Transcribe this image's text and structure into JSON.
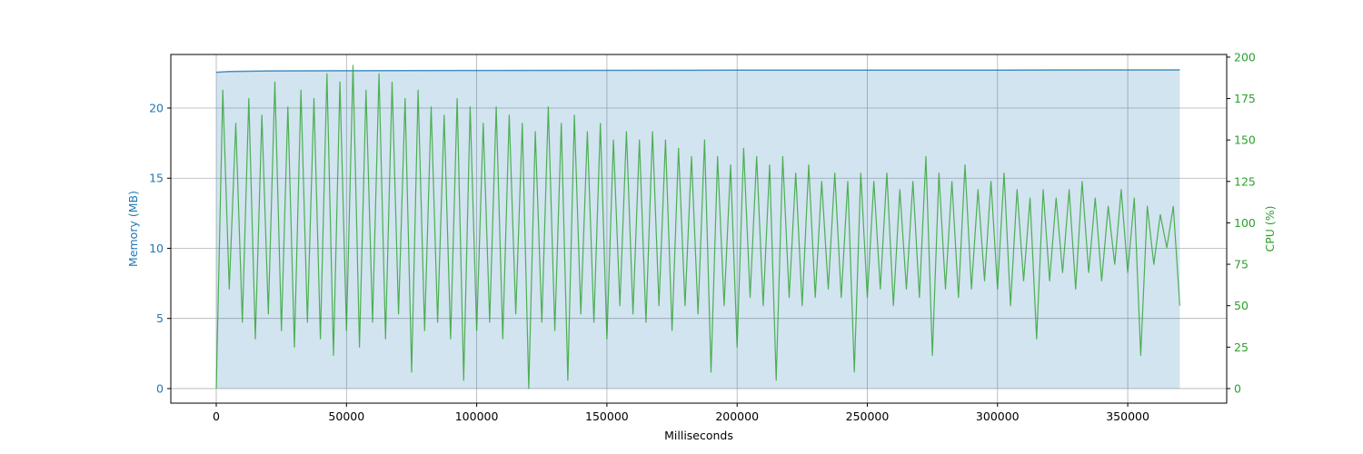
{
  "chart_data": {
    "type": "line",
    "x_label": "Milliseconds",
    "y_label": "Memory (MB)",
    "y2_label": "CPU (%)",
    "xlim": [
      -17450,
      388000
    ],
    "ylim": [
      -1.04,
      23.82
    ],
    "y2lim": [
      -8.8,
      201.6
    ],
    "xticks": [
      0,
      50000,
      100000,
      150000,
      200000,
      250000,
      300000,
      350000
    ],
    "yticks": [
      0,
      5,
      10,
      15,
      20
    ],
    "y2ticks": [
      0,
      25,
      50,
      75,
      100,
      125,
      150,
      175,
      200
    ],
    "grid": true,
    "series": [
      {
        "name": "Memory",
        "color": "#1f77b4",
        "fill": true,
        "x": [
          0,
          5000,
          20000,
          100000,
          200000,
          300000,
          340000,
          370000
        ],
        "values": [
          22.55,
          22.6,
          22.65,
          22.68,
          22.7,
          22.7,
          22.72,
          22.72
        ]
      },
      {
        "name": "CPU",
        "color": "#2ca02c",
        "axis": "y2",
        "x": [
          0,
          2500,
          5000,
          7500,
          10000,
          12500,
          15000,
          17500,
          20000,
          22500,
          25000,
          27500,
          30000,
          32500,
          35000,
          37500,
          40000,
          42500,
          45000,
          47500,
          50000,
          52500,
          55000,
          57500,
          60000,
          62500,
          65000,
          67500,
          70000,
          72500,
          75000,
          77500,
          80000,
          82500,
          85000,
          87500,
          90000,
          92500,
          95000,
          97500,
          100000,
          102500,
          105000,
          107500,
          110000,
          112500,
          115000,
          117500,
          120000,
          122500,
          125000,
          127500,
          130000,
          132500,
          135000,
          137500,
          140000,
          142500,
          145000,
          147500,
          150000,
          152500,
          155000,
          157500,
          160000,
          162500,
          165000,
          167500,
          170000,
          172500,
          175000,
          177500,
          180000,
          182500,
          185000,
          187500,
          190000,
          192500,
          195000,
          197500,
          200000,
          202500,
          205000,
          207500,
          210000,
          212500,
          215000,
          217500,
          220000,
          222500,
          225000,
          227500,
          230000,
          232500,
          235000,
          237500,
          240000,
          242500,
          245000,
          247500,
          250000,
          252500,
          255000,
          257500,
          260000,
          262500,
          265000,
          267500,
          270000,
          272500,
          275000,
          277500,
          280000,
          282500,
          285000,
          287500,
          290000,
          292500,
          295000,
          297500,
          300000,
          302500,
          305000,
          307500,
          310000,
          312500,
          315000,
          317500,
          320000,
          322500,
          325000,
          327500,
          330000,
          332500,
          335000,
          337500,
          340000,
          342500,
          345000,
          347500,
          350000,
          352500,
          355000,
          357500,
          360000,
          362500,
          365000,
          367500,
          370000
        ],
        "values": [
          0,
          180,
          60,
          160,
          40,
          175,
          30,
          165,
          45,
          185,
          35,
          170,
          25,
          180,
          40,
          175,
          30,
          190,
          20,
          185,
          35,
          195,
          25,
          180,
          40,
          190,
          30,
          185,
          45,
          175,
          10,
          180,
          35,
          170,
          40,
          165,
          30,
          175,
          5,
          170,
          35,
          160,
          40,
          170,
          30,
          165,
          45,
          160,
          0,
          155,
          40,
          170,
          35,
          160,
          5,
          165,
          45,
          155,
          40,
          160,
          30,
          150,
          50,
          155,
          45,
          150,
          40,
          155,
          50,
          150,
          35,
          145,
          50,
          140,
          45,
          150,
          10,
          140,
          50,
          135,
          25,
          145,
          55,
          140,
          50,
          135,
          5,
          140,
          55,
          130,
          50,
          135,
          55,
          125,
          60,
          130,
          55,
          125,
          10,
          130,
          55,
          125,
          60,
          130,
          50,
          120,
          60,
          125,
          55,
          140,
          20,
          130,
          60,
          125,
          55,
          135,
          60,
          120,
          65,
          125,
          60,
          130,
          50,
          120,
          65,
          115,
          30,
          120,
          65,
          115,
          70,
          120,
          60,
          125,
          70,
          115,
          65,
          110,
          75,
          120,
          70,
          115,
          20,
          110,
          75,
          105,
          85,
          110,
          50
        ]
      }
    ]
  }
}
